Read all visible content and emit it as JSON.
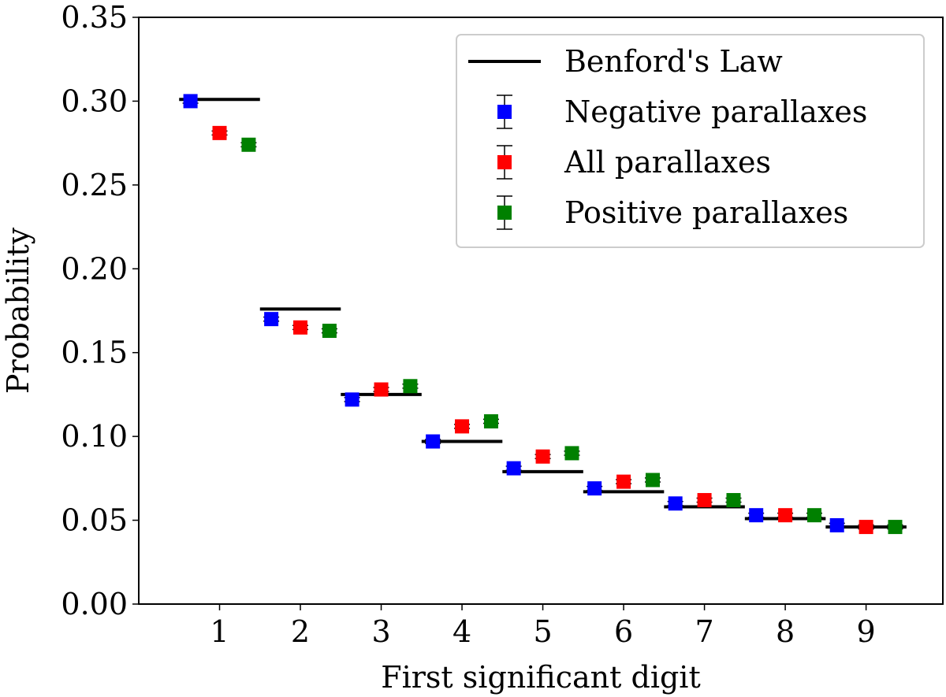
{
  "chart_data": {
    "type": "scatter",
    "title": "",
    "xlabel": "First significant digit",
    "ylabel": "Probability",
    "xlim": [
      0.0,
      9.95
    ],
    "ylim": [
      0.0,
      0.35
    ],
    "x_ticks": [
      1,
      2,
      3,
      4,
      5,
      6,
      7,
      8,
      9
    ],
    "x_tick_labels": [
      "1",
      "2",
      "3",
      "4",
      "5",
      "6",
      "7",
      "8",
      "9"
    ],
    "y_ticks": [
      0.0,
      0.05,
      0.1,
      0.15,
      0.2,
      0.25,
      0.3,
      0.35
    ],
    "y_tick_labels": [
      "0.00",
      "0.05",
      "0.10",
      "0.15",
      "0.20",
      "0.25",
      "0.30",
      "0.35"
    ],
    "grid": false,
    "legend_position": "top-right",
    "reference": {
      "name": "Benford's Law",
      "style": "horizontal segment per digit",
      "color": "#000000",
      "x": [
        1,
        2,
        3,
        4,
        5,
        6,
        7,
        8,
        9
      ],
      "values": [
        0.301,
        0.176,
        0.125,
        0.097,
        0.079,
        0.067,
        0.058,
        0.051,
        0.046
      ]
    },
    "series": [
      {
        "name": "Negative parallaxes",
        "color": "#0000ff",
        "x_offset": -0.36,
        "x": [
          1,
          2,
          3,
          4,
          5,
          6,
          7,
          8,
          9
        ],
        "values": [
          0.3,
          0.17,
          0.122,
          0.097,
          0.081,
          0.069,
          0.06,
          0.053,
          0.047
        ],
        "errors": [
          0.0012,
          0.0012,
          0.0012,
          0.0012,
          0.0012,
          0.0012,
          0.0012,
          0.0012,
          0.0012
        ]
      },
      {
        "name": "All parallaxes",
        "color": "#ff0000",
        "x_offset": 0.0,
        "x": [
          1,
          2,
          3,
          4,
          5,
          6,
          7,
          8,
          9
        ],
        "values": [
          0.281,
          0.165,
          0.128,
          0.106,
          0.088,
          0.073,
          0.062,
          0.053,
          0.046
        ],
        "errors": [
          0.0012,
          0.0012,
          0.0012,
          0.0012,
          0.0012,
          0.0012,
          0.0012,
          0.0012,
          0.0012
        ]
      },
      {
        "name": "Positive parallaxes",
        "color": "#008000",
        "x_offset": 0.36,
        "x": [
          1,
          2,
          3,
          4,
          5,
          6,
          7,
          8,
          9
        ],
        "values": [
          0.274,
          0.163,
          0.13,
          0.109,
          0.09,
          0.074,
          0.062,
          0.053,
          0.046
        ],
        "errors": [
          0.0012,
          0.0012,
          0.0012,
          0.0012,
          0.0012,
          0.0012,
          0.0012,
          0.0012,
          0.0012
        ]
      }
    ]
  }
}
